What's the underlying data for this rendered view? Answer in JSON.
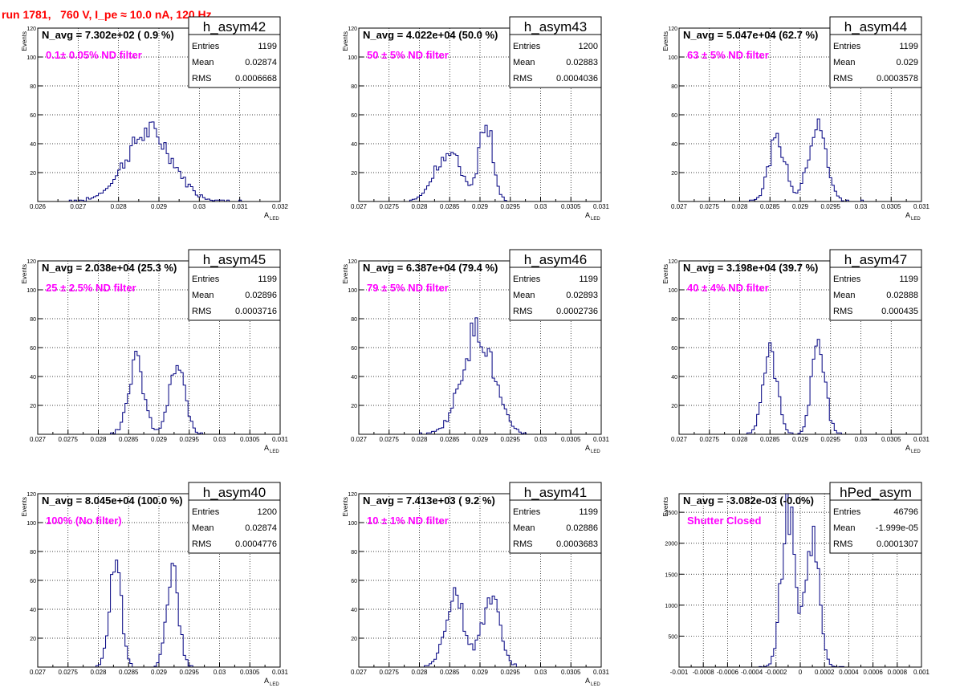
{
  "page": {
    "title": "run 1781,   760 V, I_pe ≈ 10.0 nA, 120 Hz"
  },
  "colors": {
    "hist": "#000080",
    "annotation": "#ff00ff",
    "title": "#ff0000"
  },
  "chart_data": [
    {
      "type": "histogram",
      "name": "h_asym42",
      "navg": "N_avg = 7.302e+02 ( 0.9 %)",
      "annotation": "0.1± 0.05% ND filter",
      "stats": {
        "Entries": "1199",
        "Mean": "0.02874",
        "RMS": "0.0006668"
      },
      "xlabel": "A",
      "xlabel_sub": "LED",
      "ylabel": "Events",
      "xlim": [
        0.026,
        0.032
      ],
      "ylim": [
        0,
        120
      ],
      "xticks": [
        "0.026",
        "0.027",
        "0.028",
        "0.029",
        "0.03",
        "0.031",
        "0.032"
      ],
      "yticks": [
        "20",
        "40",
        "60",
        "80",
        "100",
        "120"
      ],
      "peaks": [
        {
          "center": 0.02875,
          "sigma": 0.00058,
          "height": 48
        }
      ]
    },
    {
      "type": "histogram",
      "name": "h_asym43",
      "navg": "N_avg = 4.022e+04 (50.0 %)",
      "annotation": "50 ± 5% ND filter",
      "stats": {
        "Entries": "1200",
        "Mean": "0.02883",
        "RMS": "0.0004036"
      },
      "xlabel": "A",
      "xlabel_sub": "LED",
      "ylabel": "Events",
      "xlim": [
        0.027,
        0.031
      ],
      "ylim": [
        0,
        120
      ],
      "xticks": [
        "0.027",
        "0.0275",
        "0.028",
        "0.0285",
        "0.029",
        "0.0295",
        "0.03",
        "0.0305",
        "0.031"
      ],
      "yticks": [
        "20",
        "40",
        "60",
        "80",
        "100",
        "120"
      ],
      "peaks": [
        {
          "center": 0.02848,
          "sigma": 0.00022,
          "height": 34
        },
        {
          "center": 0.0291,
          "sigma": 0.00011,
          "height": 58
        }
      ]
    },
    {
      "type": "histogram",
      "name": "h_asym44",
      "navg": "N_avg = 5.047e+04 (62.7 %)",
      "annotation": "63 ± 5% ND filter",
      "stats": {
        "Entries": "1199",
        "Mean": "0.029",
        "RMS": "0.0003578"
      },
      "xlabel": "A",
      "xlabel_sub": "LED",
      "ylabel": "Events",
      "xlim": [
        0.027,
        0.031
      ],
      "ylim": [
        0,
        120
      ],
      "xticks": [
        "0.027",
        "0.0275",
        "0.028",
        "0.0285",
        "0.029",
        "0.0295",
        "0.03",
        "0.0305",
        "0.031"
      ],
      "yticks": [
        "20",
        "40",
        "60",
        "80",
        "100",
        "120"
      ],
      "peaks": [
        {
          "center": 0.02862,
          "sigma": 0.00014,
          "height": 42
        },
        {
          "center": 0.02928,
          "sigma": 0.00015,
          "height": 52
        }
      ]
    },
    {
      "type": "histogram",
      "name": "h_asym45",
      "navg": "N_avg = 2.038e+04 (25.3 %)",
      "annotation": "25 ± 2.5% ND filter",
      "stats": {
        "Entries": "1199",
        "Mean": "0.02896",
        "RMS": "0.0003716"
      },
      "xlabel": "A",
      "xlabel_sub": "LED",
      "ylabel": "Events",
      "xlim": [
        0.027,
        0.031
      ],
      "ylim": [
        0,
        120
      ],
      "xticks": [
        "0.027",
        "0.0275",
        "0.028",
        "0.0285",
        "0.029",
        "0.0295",
        "0.03",
        "0.0305",
        "0.031"
      ],
      "yticks": [
        "20",
        "40",
        "60",
        "80",
        "100",
        "120"
      ],
      "peaks": [
        {
          "center": 0.02862,
          "sigma": 0.00013,
          "height": 50
        },
        {
          "center": 0.0293,
          "sigma": 0.00013,
          "height": 46
        }
      ]
    },
    {
      "type": "histogram",
      "name": "h_asym46",
      "navg": "N_avg = 6.387e+04 (79.4 %)",
      "annotation": "79 ± 5% ND filter",
      "stats": {
        "Entries": "1199",
        "Mean": "0.02893",
        "RMS": "0.0002736"
      },
      "xlabel": "A",
      "xlabel_sub": "LED",
      "ylabel": "Events",
      "xlim": [
        0.027,
        0.031
      ],
      "ylim": [
        0,
        120
      ],
      "xticks": [
        "0.027",
        "0.0275",
        "0.028",
        "0.0285",
        "0.029",
        "0.0295",
        "0.03",
        "0.0305",
        "0.031"
      ],
      "yticks": [
        "20",
        "40",
        "60",
        "80",
        "100",
        "120"
      ],
      "peaks": [
        {
          "center": 0.02896,
          "sigma": 0.00026,
          "height": 72
        }
      ]
    },
    {
      "type": "histogram",
      "name": "h_asym47",
      "navg": "N_avg = 3.198e+04 (39.7 %)",
      "annotation": "40 ± 4% ND filter",
      "stats": {
        "Entries": "1199",
        "Mean": "0.02888",
        "RMS": "0.000435"
      },
      "xlabel": "A",
      "xlabel_sub": "LED",
      "ylabel": "Events",
      "xlim": [
        0.027,
        0.031
      ],
      "ylim": [
        0,
        120
      ],
      "xticks": [
        "0.027",
        "0.0275",
        "0.028",
        "0.0285",
        "0.029",
        "0.0295",
        "0.03",
        "0.0305",
        "0.031"
      ],
      "yticks": [
        "20",
        "40",
        "60",
        "80",
        "100",
        "120"
      ],
      "peaks": [
        {
          "center": 0.0285,
          "sigma": 0.00012,
          "height": 56
        },
        {
          "center": 0.0293,
          "sigma": 0.00011,
          "height": 64
        }
      ]
    },
    {
      "type": "histogram",
      "name": "h_asym40",
      "navg": "N_avg = 8.045e+04 (100.0 %)",
      "annotation": "100% (No filter)",
      "stats": {
        "Entries": "1200",
        "Mean": "0.02874",
        "RMS": "0.0004776"
      },
      "xlabel": "A",
      "xlabel_sub": "LED",
      "ylabel": "Events",
      "xlim": [
        0.027,
        0.031
      ],
      "ylim": [
        0,
        120
      ],
      "xticks": [
        "0.027",
        "0.0275",
        "0.028",
        "0.0285",
        "0.029",
        "0.0295",
        "0.03",
        "0.0305",
        "0.031"
      ],
      "yticks": [
        "20",
        "40",
        "60",
        "80",
        "100",
        "120"
      ],
      "peaks": [
        {
          "center": 0.02828,
          "sigma": 0.0001,
          "height": 70
        },
        {
          "center": 0.02922,
          "sigma": 0.0001,
          "height": 68
        }
      ]
    },
    {
      "type": "histogram",
      "name": "h_asym41",
      "navg": "N_avg = 7.413e+03 ( 9.2 %)",
      "annotation": "10 ± 1% ND filter",
      "stats": {
        "Entries": "1199",
        "Mean": "0.02886",
        "RMS": "0.0003683"
      },
      "xlabel": "A",
      "xlabel_sub": "LED",
      "ylabel": "Events",
      "xlim": [
        0.027,
        0.031
      ],
      "ylim": [
        0,
        120
      ],
      "xticks": [
        "0.027",
        "0.0275",
        "0.028",
        "0.0285",
        "0.029",
        "0.0295",
        "0.03",
        "0.0305",
        "0.031"
      ],
      "yticks": [
        "20",
        "40",
        "60",
        "80",
        "100",
        "120"
      ],
      "peaks": [
        {
          "center": 0.02858,
          "sigma": 0.00015,
          "height": 52
        },
        {
          "center": 0.02918,
          "sigma": 0.00015,
          "height": 48
        }
      ]
    },
    {
      "type": "histogram",
      "name": "hPed_asym",
      "navg": "N_avg = -3.082e-03 (-0.0%)",
      "annotation": "Shutter Closed",
      "stats": {
        "Entries": "46796",
        "Mean": "-1.999e-05",
        "RMS": "0.0001307"
      },
      "xlabel": "",
      "xlabel_sub": "",
      "ylabel": "Events",
      "xlim": [
        -0.001,
        0.001
      ],
      "ylim": [
        0,
        2800
      ],
      "xticks": [
        "-0.001",
        "-0.0008",
        "-0.0006",
        "-0.0004",
        "-0.0002",
        "0",
        "0.0002",
        "0.0004",
        "0.0006",
        "0.0008",
        "0.001"
      ],
      "yticks": [
        "500",
        "1000",
        "1500",
        "2000",
        "2500"
      ],
      "peaks": [
        {
          "center": -0.0001,
          "sigma": 5.5e-05,
          "height": 2600
        },
        {
          "center": 0.0001,
          "sigma": 5.5e-05,
          "height": 2150
        }
      ]
    }
  ]
}
